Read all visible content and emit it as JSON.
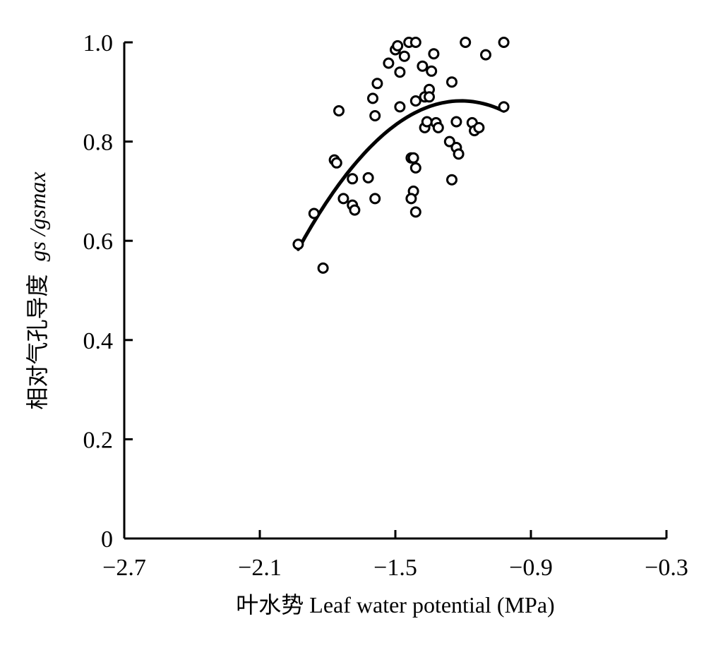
{
  "chart_data": {
    "type": "scatter",
    "xlabel": "叶水势 Leaf water potential (MPa)",
    "ylabel_cn": "相对气孔导度",
    "ylabel_symbol": "gs /gsmax",
    "xlim": [
      -2.7,
      -0.3
    ],
    "ylim": [
      0,
      1.0
    ],
    "x_ticks": [
      -2.7,
      -2.1,
      -1.5,
      -0.9,
      -0.3
    ],
    "x_tick_labels": [
      "−2.7",
      "−2.1",
      "−1.5",
      "−0.9",
      "−0.3"
    ],
    "y_ticks": [
      0,
      0.2,
      0.4,
      0.6,
      0.8,
      1.0
    ],
    "y_tick_labels": [
      "0",
      "0.2",
      "0.4",
      "0.6",
      "0.8",
      "1.0"
    ],
    "grid": false,
    "points": [
      [
        -1.93,
        0.593
      ],
      [
        -1.86,
        0.655
      ],
      [
        -1.82,
        0.545
      ],
      [
        -1.77,
        0.763
      ],
      [
        -1.76,
        0.757
      ],
      [
        -1.75,
        0.862
      ],
      [
        -1.73,
        0.685
      ],
      [
        -1.69,
        0.725
      ],
      [
        -1.69,
        0.672
      ],
      [
        -1.68,
        0.662
      ],
      [
        -1.62,
        0.727
      ],
      [
        -1.6,
        0.887
      ],
      [
        -1.59,
        0.852
      ],
      [
        -1.59,
        0.685
      ],
      [
        -1.58,
        0.917
      ],
      [
        -1.53,
        0.958
      ],
      [
        -1.5,
        0.985
      ],
      [
        -1.49,
        0.993
      ],
      [
        -1.48,
        0.94
      ],
      [
        -1.48,
        0.87
      ],
      [
        -1.46,
        0.972
      ],
      [
        -1.44,
        1.0
      ],
      [
        -1.43,
        0.767
      ],
      [
        -1.42,
        0.767
      ],
      [
        -1.42,
        0.7
      ],
      [
        -1.43,
        0.685
      ],
      [
        -1.41,
        1.0
      ],
      [
        -1.41,
        0.882
      ],
      [
        -1.41,
        0.747
      ],
      [
        -1.41,
        0.658
      ],
      [
        -1.38,
        0.952
      ],
      [
        -1.37,
        0.89
      ],
      [
        -1.37,
        0.828
      ],
      [
        -1.36,
        0.84
      ],
      [
        -1.35,
        0.905
      ],
      [
        -1.35,
        0.89
      ],
      [
        -1.34,
        0.942
      ],
      [
        -1.33,
        0.977
      ],
      [
        -1.32,
        0.838
      ],
      [
        -1.31,
        0.828
      ],
      [
        -1.26,
        0.8
      ],
      [
        -1.25,
        0.92
      ],
      [
        -1.25,
        0.723
      ],
      [
        -1.23,
        0.84
      ],
      [
        -1.23,
        0.788
      ],
      [
        -1.22,
        0.775
      ],
      [
        -1.19,
        1.0
      ],
      [
        -1.16,
        0.838
      ],
      [
        -1.15,
        0.822
      ],
      [
        -1.13,
        0.828
      ],
      [
        -1.1,
        0.975
      ],
      [
        -1.02,
        1.0
      ],
      [
        -1.02,
        0.87
      ]
    ],
    "fit": {
      "type": "quadratic",
      "x_range": [
        -1.93,
        -1.02
      ],
      "comment": "y = a x^2 + b x + c",
      "a": -0.575,
      "b": -1.39,
      "c": 0.042
    }
  }
}
